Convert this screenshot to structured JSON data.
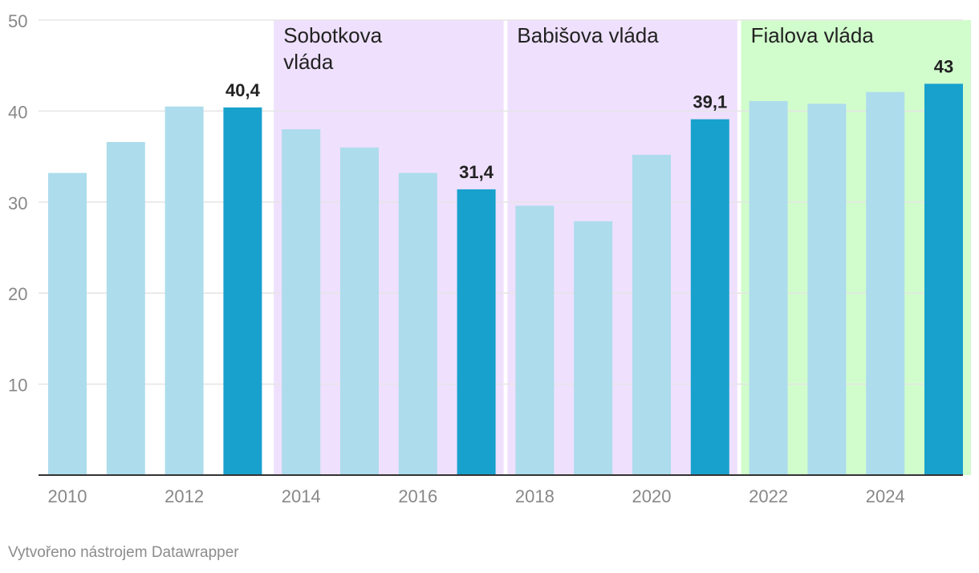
{
  "chart_data": {
    "type": "bar",
    "x": [
      2010,
      2011,
      2012,
      2013,
      2014,
      2015,
      2016,
      2017,
      2018,
      2019,
      2020,
      2021,
      2022,
      2023,
      2024,
      2025
    ],
    "values": [
      33.2,
      36.6,
      40.5,
      40.4,
      38.0,
      36.0,
      33.2,
      31.4,
      29.6,
      27.9,
      35.2,
      39.1,
      41.1,
      40.8,
      42.1,
      43
    ],
    "highlighted": [
      2013,
      2017,
      2021,
      2025
    ],
    "data_labels": [
      {
        "x": 2013,
        "text": "40,4"
      },
      {
        "x": 2017,
        "text": "31,4"
      },
      {
        "x": 2021,
        "text": "39,1"
      },
      {
        "x": 2025,
        "text": "43"
      }
    ],
    "ylim": [
      0,
      50
    ],
    "yticks": [
      10,
      20,
      30,
      40,
      50
    ],
    "xticks": [
      2010,
      2012,
      2014,
      2016,
      2018,
      2020,
      2022,
      2024
    ],
    "grid": true,
    "title": "",
    "xlabel": "",
    "ylabel": "",
    "periods": [
      {
        "label": "Sobotkova vláda",
        "lines": [
          "Sobotkova",
          "vláda"
        ],
        "from": 2014,
        "to": 2017,
        "color": "#efe0fd"
      },
      {
        "label": "Babišova vláda",
        "lines": [
          "Babišova vláda"
        ],
        "from": 2018,
        "to": 2021,
        "color": "#efe0fd"
      },
      {
        "label": "Fialova vláda",
        "lines": [
          "Fialova vláda"
        ],
        "from": 2022,
        "to": 2025,
        "color": "#d1fdcc"
      }
    ],
    "colors": {
      "bar": "#addcec",
      "bar_highlight": "#18a1cd",
      "grid": "#e5e5e5",
      "axis": "#333333",
      "tick_text": "#888888",
      "label_text": "#222222"
    }
  },
  "footer": {
    "credit": "Vytvořeno nástrojem Datawrapper"
  }
}
